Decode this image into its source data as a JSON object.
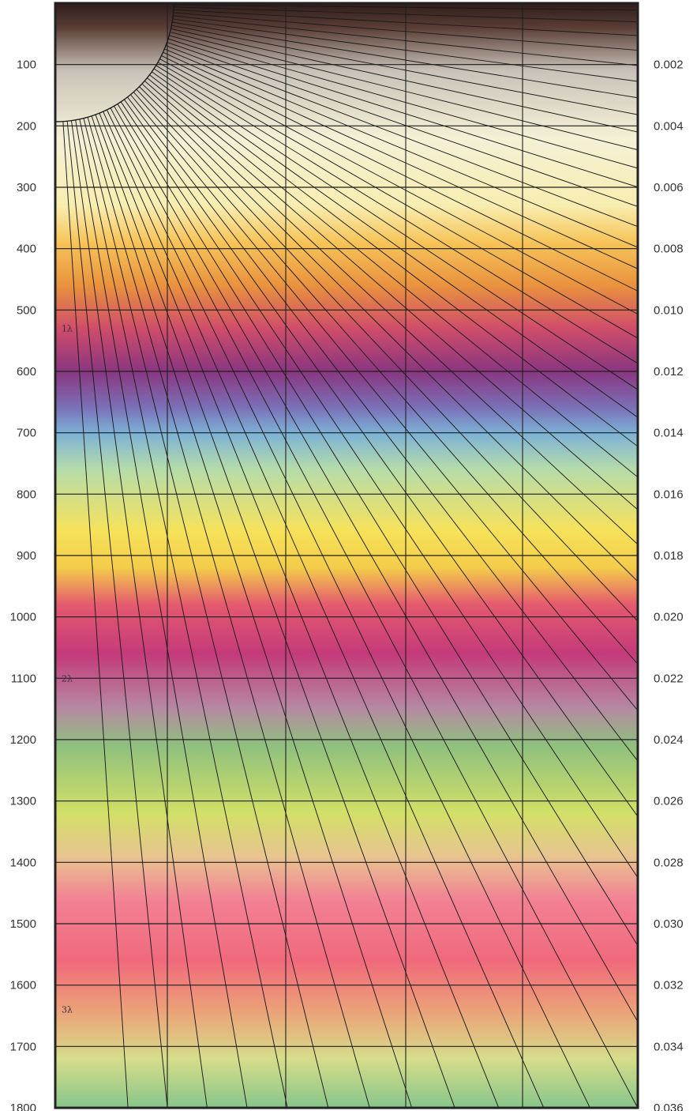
{
  "left_axis": {
    "ticks": [
      "100",
      "200",
      "300",
      "400",
      "500",
      "600",
      "700",
      "800",
      "900",
      "1000",
      "1100",
      "1200",
      "1300",
      "1400",
      "1500",
      "1600",
      "1700",
      "1800"
    ]
  },
  "right_axis": {
    "ticks": [
      "0.002",
      "0.004",
      "0.006",
      "0.008",
      "0.010",
      "0.012",
      "0.014",
      "0.016",
      "0.018",
      "0.020",
      "0.022",
      "0.024",
      "0.026",
      "0.028",
      "0.030",
      "0.032",
      "0.034",
      "0.036"
    ]
  },
  "order_labels": [
    {
      "text": "1λ",
      "value": 530
    },
    {
      "text": "2λ",
      "value": 1100
    },
    {
      "text": "3λ",
      "value": 1640
    }
  ],
  "colors": {
    "band_stops": [
      {
        "value": 0,
        "color": "#2e1c1a"
      },
      {
        "value": 40,
        "color": "#5a3e36"
      },
      {
        "value": 110,
        "color": "#c8c2b8"
      },
      {
        "value": 220,
        "color": "#f4f1d6"
      },
      {
        "value": 330,
        "color": "#f8edb0"
      },
      {
        "value": 390,
        "color": "#f7c458"
      },
      {
        "value": 460,
        "color": "#e9923e"
      },
      {
        "value": 530,
        "color": "#cf4d6a"
      },
      {
        "value": 600,
        "color": "#8a3680"
      },
      {
        "value": 660,
        "color": "#7a72b8"
      },
      {
        "value": 700,
        "color": "#7cb1d6"
      },
      {
        "value": 760,
        "color": "#b6dcaa"
      },
      {
        "value": 860,
        "color": "#f6e25a"
      },
      {
        "value": 920,
        "color": "#f3cc4a"
      },
      {
        "value": 980,
        "color": "#e45a6e"
      },
      {
        "value": 1060,
        "color": "#c43a7a"
      },
      {
        "value": 1150,
        "color": "#b58aa2"
      },
      {
        "value": 1210,
        "color": "#8fc07e"
      },
      {
        "value": 1320,
        "color": "#d2e067"
      },
      {
        "value": 1390,
        "color": "#e8c490"
      },
      {
        "value": 1460,
        "color": "#f28294"
      },
      {
        "value": 1560,
        "color": "#f0697c"
      },
      {
        "value": 1640,
        "color": "#eca078"
      },
      {
        "value": 1720,
        "color": "#d6dd8a"
      },
      {
        "value": 1800,
        "color": "#88c58a"
      }
    ]
  }
}
